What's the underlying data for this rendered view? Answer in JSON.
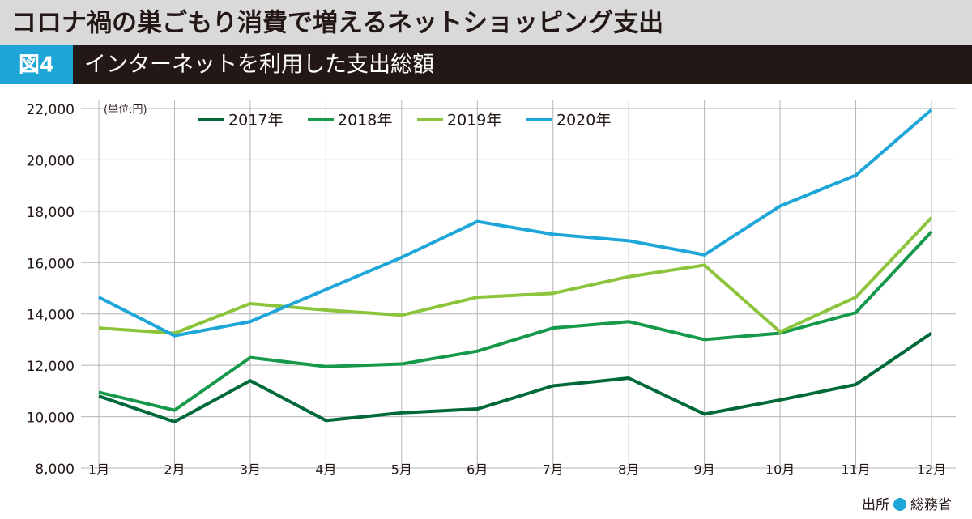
{
  "chart_data": {
    "type": "line",
    "title": "コロナ禍の巣ごもり消費で増えるネットショッピング支出",
    "figure_label": "図4",
    "subtitle": "インターネットを利用した支出総額",
    "unit_note": "(単位:円)",
    "source_label": "出所",
    "source": "総務省",
    "categories": [
      "1月",
      "2月",
      "3月",
      "4月",
      "5月",
      "6月",
      "7月",
      "8月",
      "9月",
      "10月",
      "11月",
      "12月"
    ],
    "series": [
      {
        "name": "2017年",
        "color": "#00693a",
        "values": [
          10800,
          9800,
          11400,
          9850,
          10150,
          10300,
          11200,
          11500,
          10100,
          10650,
          11250,
          13250
        ]
      },
      {
        "name": "2018年",
        "color": "#16994a",
        "values": [
          10950,
          10250,
          12300,
          11950,
          12050,
          12550,
          13450,
          13700,
          13000,
          13250,
          14050,
          17200
        ]
      },
      {
        "name": "2019年",
        "color": "#8cc43c",
        "values": [
          13450,
          13250,
          14400,
          14150,
          13950,
          14650,
          14800,
          15450,
          15900,
          13300,
          14650,
          17750
        ]
      },
      {
        "name": "2020年",
        "color": "#1ea6d8",
        "values": [
          14650,
          13150,
          13700,
          14950,
          16200,
          17600,
          17100,
          16850,
          16300,
          18200,
          19400,
          21950
        ]
      }
    ],
    "ylim": [
      8000,
      22000
    ],
    "yticks": [
      {
        "value": 8000,
        "label": "8,000"
      },
      {
        "value": 10000,
        "label": "10,000"
      },
      {
        "value": 12000,
        "label": "12,000"
      },
      {
        "value": 14000,
        "label": "14,000"
      },
      {
        "value": 16000,
        "label": "16,000"
      },
      {
        "value": 18000,
        "label": "18,000"
      },
      {
        "value": 20000,
        "label": "20,000"
      },
      {
        "value": 22000,
        "label": "22,000"
      }
    ],
    "grid": true
  }
}
